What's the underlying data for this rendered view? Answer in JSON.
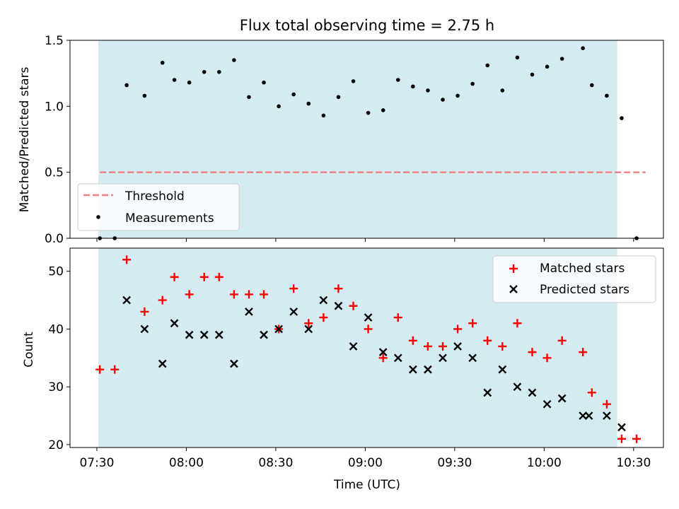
{
  "chart_data": {
    "title": "Flux total observing time = 2.75 h",
    "shaded_region_minutes": [
      450.5,
      624.5
    ],
    "x": {
      "label": "Time (UTC)",
      "ticks": [
        450,
        480,
        510,
        540,
        570,
        600,
        630
      ],
      "tick_labels": [
        "07:30",
        "08:00",
        "08:30",
        "09:00",
        "09:30",
        "10:00",
        "10:30"
      ],
      "range_minutes": [
        441,
        640
      ]
    },
    "top": {
      "type": "scatter",
      "ylabel": "Matched/Predicted stars",
      "ylim": [
        0.0,
        1.5
      ],
      "yticks": [
        0.0,
        0.5,
        1.0,
        1.5
      ],
      "ytick_labels": [
        "0.0",
        "0.5",
        "1.0",
        "1.5"
      ],
      "threshold": {
        "name": "Threshold",
        "value": 0.5,
        "x_range_minutes": [
          451,
          634
        ],
        "color": "#f08080"
      },
      "measurements": {
        "name": "Measurements",
        "color": "#000000",
        "points": [
          [
            451,
            0.0
          ],
          [
            456,
            0.0
          ],
          [
            460,
            1.16
          ],
          [
            466,
            1.08
          ],
          [
            472,
            1.33
          ],
          [
            476,
            1.2
          ],
          [
            481,
            1.18
          ],
          [
            486,
            1.26
          ],
          [
            491,
            1.26
          ],
          [
            496,
            1.35
          ],
          [
            501,
            1.07
          ],
          [
            506,
            1.18
          ],
          [
            511,
            1.0
          ],
          [
            516,
            1.09
          ],
          [
            521,
            1.02
          ],
          [
            526,
            0.93
          ],
          [
            531,
            1.07
          ],
          [
            536,
            1.19
          ],
          [
            541,
            0.95
          ],
          [
            546,
            0.97
          ],
          [
            551,
            1.2
          ],
          [
            556,
            1.15
          ],
          [
            561,
            1.12
          ],
          [
            566,
            1.05
          ],
          [
            571,
            1.08
          ],
          [
            576,
            1.17
          ],
          [
            581,
            1.31
          ],
          [
            586,
            1.12
          ],
          [
            591,
            1.37
          ],
          [
            596,
            1.24
          ],
          [
            601,
            1.3
          ],
          [
            606,
            1.36
          ],
          [
            613,
            1.44
          ],
          [
            616,
            1.16
          ],
          [
            621,
            1.08
          ],
          [
            626,
            0.91
          ],
          [
            631,
            0.0
          ]
        ]
      }
    },
    "bottom": {
      "type": "scatter",
      "ylabel": "Count",
      "ylim": [
        19.5,
        54
      ],
      "yticks": [
        20,
        30,
        40,
        50
      ],
      "ytick_labels": [
        "20",
        "30",
        "40",
        "50"
      ],
      "matched": {
        "name": "Matched stars",
        "color": "#ff0000",
        "points": [
          [
            451,
            33
          ],
          [
            456,
            33
          ],
          [
            460,
            52
          ],
          [
            466,
            43
          ],
          [
            472,
            45
          ],
          [
            476,
            49
          ],
          [
            481,
            46
          ],
          [
            486,
            49
          ],
          [
            491,
            49
          ],
          [
            496,
            46
          ],
          [
            501,
            46
          ],
          [
            506,
            46
          ],
          [
            511,
            40
          ],
          [
            516,
            47
          ],
          [
            521,
            41
          ],
          [
            526,
            42
          ],
          [
            531,
            47
          ],
          [
            536,
            44
          ],
          [
            541,
            40
          ],
          [
            546,
            35
          ],
          [
            551,
            42
          ],
          [
            556,
            38
          ],
          [
            561,
            37
          ],
          [
            566,
            37
          ],
          [
            571,
            40
          ],
          [
            576,
            41
          ],
          [
            581,
            38
          ],
          [
            586,
            37
          ],
          [
            591,
            41
          ],
          [
            596,
            36
          ],
          [
            601,
            35
          ],
          [
            606,
            38
          ],
          [
            613,
            36
          ],
          [
            616,
            29
          ],
          [
            621,
            27
          ],
          [
            626,
            21
          ],
          [
            631,
            21
          ]
        ]
      },
      "predicted": {
        "name": "Predicted stars",
        "color": "#000000",
        "points": [
          [
            460,
            45
          ],
          [
            466,
            40
          ],
          [
            472,
            34
          ],
          [
            476,
            41
          ],
          [
            481,
            39
          ],
          [
            486,
            39
          ],
          [
            491,
            39
          ],
          [
            496,
            34
          ],
          [
            501,
            43
          ],
          [
            506,
            39
          ],
          [
            511,
            40
          ],
          [
            516,
            43
          ],
          [
            521,
            40
          ],
          [
            526,
            45
          ],
          [
            531,
            44
          ],
          [
            536,
            37
          ],
          [
            541,
            42
          ],
          [
            546,
            36
          ],
          [
            551,
            35
          ],
          [
            556,
            33
          ],
          [
            561,
            33
          ],
          [
            566,
            35
          ],
          [
            571,
            37
          ],
          [
            576,
            35
          ],
          [
            581,
            29
          ],
          [
            586,
            33
          ],
          [
            591,
            30
          ],
          [
            596,
            29
          ],
          [
            601,
            27
          ],
          [
            606,
            28
          ],
          [
            613,
            25
          ],
          [
            615,
            25
          ],
          [
            621,
            25
          ],
          [
            626,
            23
          ]
        ]
      }
    }
  }
}
